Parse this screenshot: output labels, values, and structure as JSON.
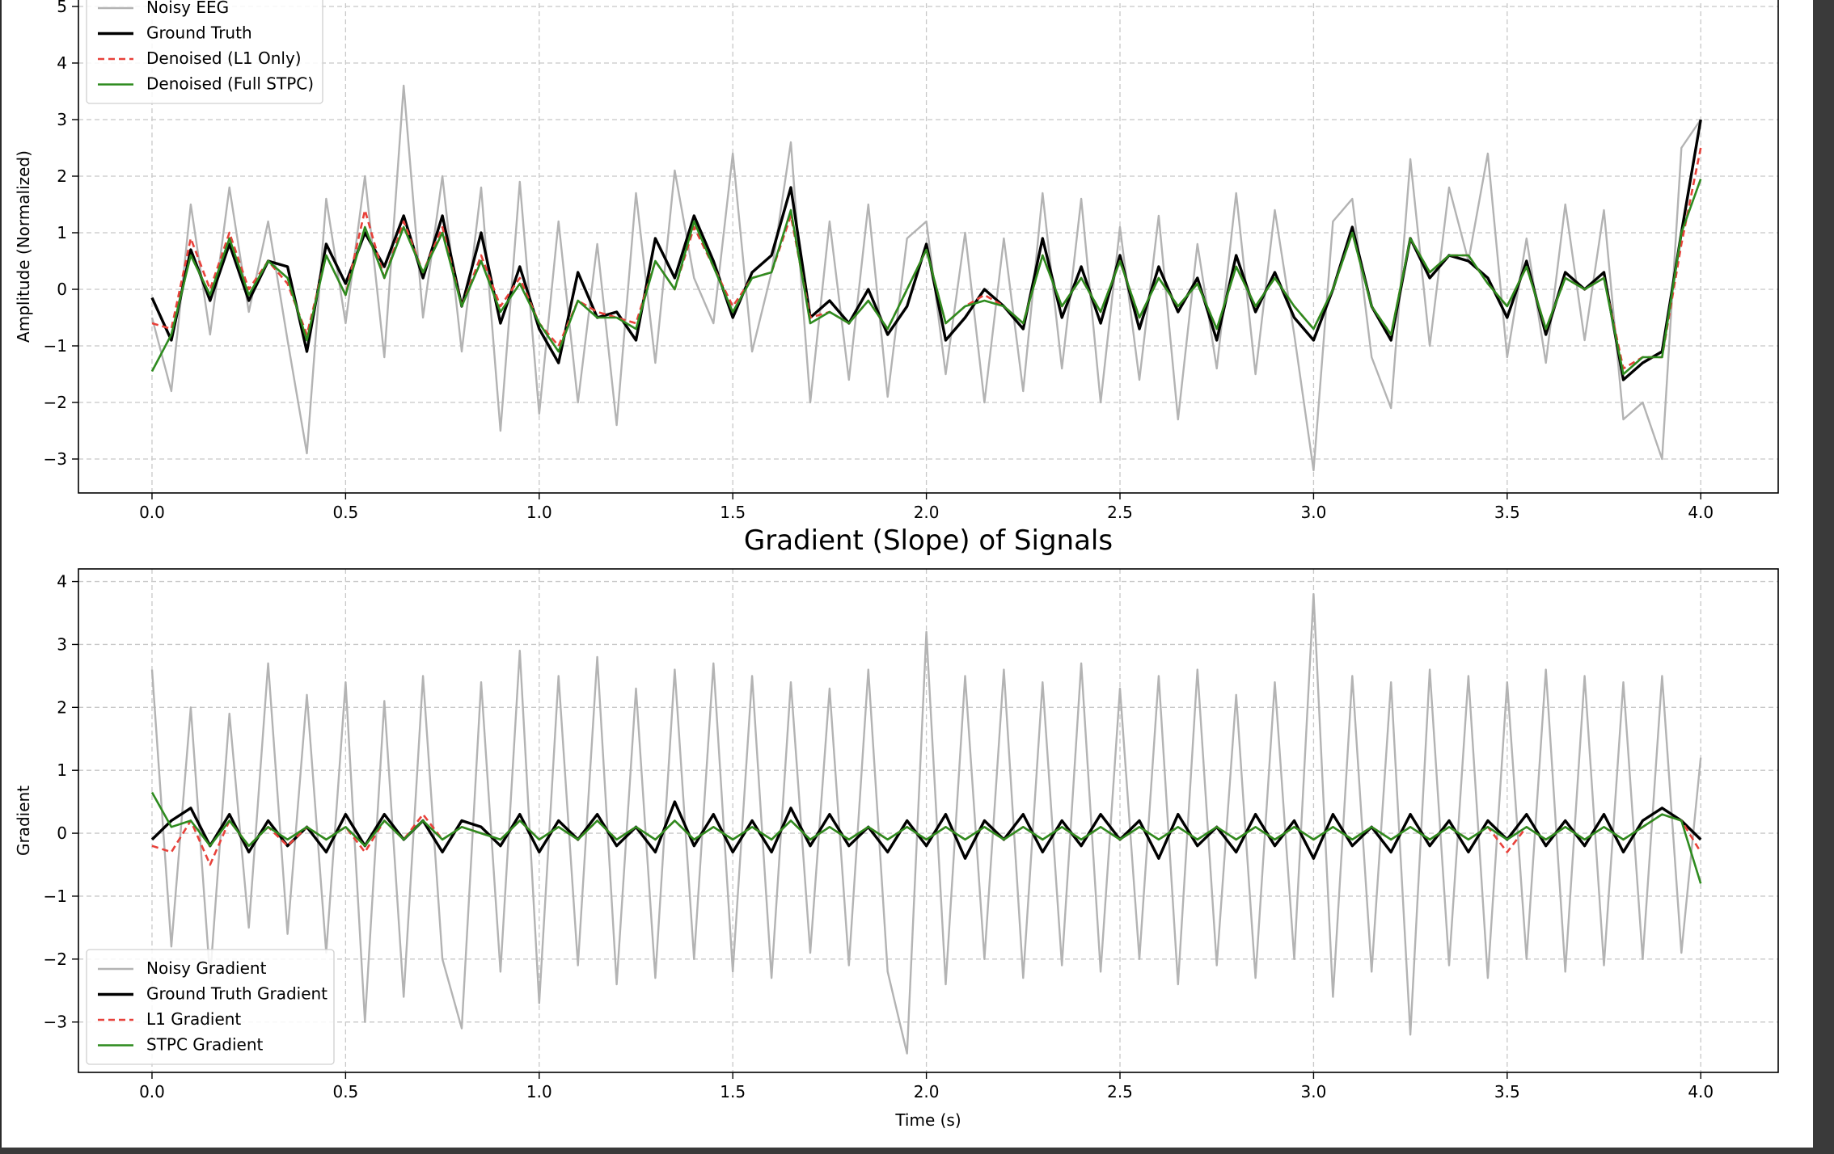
{
  "chart_data": [
    {
      "type": "line",
      "title": "",
      "xlabel": "",
      "ylabel": "Amplitude (Normalized)",
      "xlim": [
        -0.19,
        4.2
      ],
      "ylim": [
        -3.6,
        5.2
      ],
      "xticks": [
        0.0,
        0.5,
        1.0,
        1.5,
        2.0,
        2.5,
        3.0,
        3.5,
        4.0
      ],
      "xtick_labels": [
        "0.0",
        "0.5",
        "1.0",
        "1.5",
        "2.0",
        "2.5",
        "3.0",
        "3.5",
        "4.0"
      ],
      "yticks": [
        -3,
        -2,
        -1,
        0,
        1,
        2,
        3,
        4,
        5
      ],
      "ytick_labels": [
        "−3",
        "−2",
        "−1",
        "0",
        "1",
        "2",
        "3",
        "4",
        "5"
      ],
      "grid": true,
      "legend_position": "top-left",
      "x": [
        0.0,
        0.05,
        0.1,
        0.15,
        0.2,
        0.25,
        0.3,
        0.35,
        0.4,
        0.45,
        0.5,
        0.55,
        0.6,
        0.65,
        0.7,
        0.75,
        0.8,
        0.85,
        0.9,
        0.95,
        1.0,
        1.05,
        1.1,
        1.15,
        1.2,
        1.25,
        1.3,
        1.35,
        1.4,
        1.45,
        1.5,
        1.55,
        1.6,
        1.65,
        1.7,
        1.75,
        1.8,
        1.85,
        1.9,
        1.95,
        2.0,
        2.05,
        2.1,
        2.15,
        2.2,
        2.25,
        2.3,
        2.35,
        2.4,
        2.45,
        2.5,
        2.55,
        2.6,
        2.65,
        2.7,
        2.75,
        2.8,
        2.85,
        2.9,
        2.95,
        3.0,
        3.05,
        3.1,
        3.15,
        3.2,
        3.25,
        3.3,
        3.35,
        3.4,
        3.45,
        3.5,
        3.55,
        3.6,
        3.65,
        3.7,
        3.75,
        3.8,
        3.85,
        3.9,
        3.95,
        4.0
      ],
      "series": [
        {
          "name": "Noisy EEG",
          "color": "#b3b3b3",
          "dash": "",
          "values": [
            -0.5,
            -1.8,
            1.5,
            -0.8,
            1.8,
            -0.4,
            1.2,
            -0.9,
            -2.9,
            1.6,
            -0.6,
            2.0,
            -1.2,
            3.6,
            -0.5,
            2.0,
            -1.1,
            1.8,
            -2.5,
            1.9,
            -2.2,
            1.2,
            -2.0,
            0.8,
            -2.4,
            1.7,
            -1.3,
            2.1,
            0.2,
            -0.6,
            2.4,
            -1.1,
            0.3,
            2.6,
            -2.0,
            1.2,
            -1.6,
            1.5,
            -1.9,
            0.9,
            1.2,
            -1.5,
            1.0,
            -2.0,
            0.9,
            -1.8,
            1.7,
            -1.4,
            1.6,
            -2.0,
            1.1,
            -1.6,
            1.3,
            -2.3,
            0.8,
            -1.4,
            1.7,
            -1.5,
            1.4,
            -0.8,
            -3.2,
            1.2,
            1.6,
            -1.2,
            -2.1,
            2.3,
            -1.0,
            1.8,
            0.5,
            2.4,
            -1.2,
            0.9,
            -1.3,
            1.5,
            -0.9,
            1.4,
            -2.3,
            -2.0,
            -3.0,
            2.5,
            3.0
          ]
        },
        {
          "name": "Ground Truth",
          "color": "#000000",
          "dash": "",
          "values": [
            -0.15,
            -0.9,
            0.7,
            -0.2,
            0.8,
            -0.2,
            0.5,
            0.4,
            -1.1,
            0.8,
            0.1,
            1.0,
            0.4,
            1.3,
            0.2,
            1.3,
            -0.3,
            1.0,
            -0.6,
            0.4,
            -0.7,
            -1.3,
            0.3,
            -0.5,
            -0.4,
            -0.9,
            0.9,
            0.2,
            1.3,
            0.5,
            -0.5,
            0.3,
            0.6,
            1.8,
            -0.5,
            -0.2,
            -0.6,
            0.0,
            -0.8,
            -0.3,
            0.8,
            -0.9,
            -0.5,
            0.0,
            -0.3,
            -0.7,
            0.9,
            -0.5,
            0.4,
            -0.6,
            0.6,
            -0.7,
            0.4,
            -0.4,
            0.2,
            -0.9,
            0.6,
            -0.4,
            0.3,
            -0.5,
            -0.9,
            0.0,
            1.1,
            -0.3,
            -0.9,
            0.9,
            0.2,
            0.6,
            0.5,
            0.2,
            -0.5,
            0.5,
            -0.8,
            0.3,
            0.0,
            0.3,
            -1.6,
            -1.3,
            -1.1,
            1.0,
            3.0
          ]
        },
        {
          "name": "Denoised (L1 Only)",
          "color": "#e8413a",
          "dash": "8,5",
          "values": [
            -0.6,
            -0.7,
            0.9,
            0.0,
            1.0,
            0.0,
            0.5,
            0.1,
            -0.8,
            0.6,
            -0.1,
            1.4,
            0.2,
            1.2,
            0.3,
            1.1,
            -0.3,
            0.6,
            -0.3,
            0.2,
            -0.6,
            -1.0,
            -0.2,
            -0.4,
            -0.5,
            -0.6,
            0.5,
            0.0,
            1.1,
            0.4,
            -0.3,
            0.2,
            0.3,
            1.3,
            -0.5,
            -0.4,
            -0.6,
            -0.2,
            -0.7,
            0.0,
            0.7,
            -0.6,
            -0.3,
            -0.1,
            -0.3,
            -0.6,
            0.6,
            -0.3,
            0.2,
            -0.4,
            0.5,
            -0.5,
            0.2,
            -0.3,
            0.1,
            -0.7,
            0.4,
            -0.3,
            0.2,
            -0.3,
            -0.7,
            0.0,
            1.0,
            -0.3,
            -0.8,
            0.9,
            0.3,
            0.6,
            0.6,
            0.1,
            -0.3,
            0.4,
            -0.7,
            0.2,
            0.0,
            0.2,
            -1.4,
            -1.2,
            -1.2,
            0.8,
            2.5
          ]
        },
        {
          "name": "Denoised (Full STPC)",
          "color": "#2e8b1f",
          "dash": "",
          "values": [
            -1.45,
            -0.8,
            0.6,
            -0.1,
            0.9,
            -0.1,
            0.5,
            0.2,
            -0.9,
            0.6,
            -0.1,
            1.1,
            0.2,
            1.1,
            0.3,
            1.0,
            -0.3,
            0.5,
            -0.4,
            0.1,
            -0.6,
            -1.1,
            -0.2,
            -0.5,
            -0.5,
            -0.7,
            0.5,
            0.0,
            1.2,
            0.4,
            -0.4,
            0.2,
            0.3,
            1.4,
            -0.6,
            -0.4,
            -0.6,
            -0.2,
            -0.7,
            0.0,
            0.7,
            -0.6,
            -0.3,
            -0.2,
            -0.3,
            -0.6,
            0.6,
            -0.3,
            0.2,
            -0.4,
            0.5,
            -0.5,
            0.2,
            -0.3,
            0.1,
            -0.7,
            0.4,
            -0.3,
            0.2,
            -0.3,
            -0.7,
            0.0,
            1.0,
            -0.3,
            -0.8,
            0.9,
            0.3,
            0.6,
            0.6,
            0.1,
            -0.3,
            0.4,
            -0.7,
            0.2,
            0.0,
            0.2,
            -1.5,
            -1.2,
            -1.2,
            1.0,
            1.95
          ]
        }
      ]
    },
    {
      "type": "line",
      "title": "Gradient (Slope) of Signals",
      "xlabel": "Time (s)",
      "ylabel": "Gradient",
      "xlim": [
        -0.19,
        4.2
      ],
      "ylim": [
        -3.8,
        4.2
      ],
      "xticks": [
        0.0,
        0.5,
        1.0,
        1.5,
        2.0,
        2.5,
        3.0,
        3.5,
        4.0
      ],
      "xtick_labels": [
        "0.0",
        "0.5",
        "1.0",
        "1.5",
        "2.0",
        "2.5",
        "3.0",
        "3.5",
        "4.0"
      ],
      "yticks": [
        -3,
        -2,
        -1,
        0,
        1,
        2,
        3,
        4
      ],
      "ytick_labels": [
        "−3",
        "−2",
        "−1",
        "0",
        "1",
        "2",
        "3",
        "4"
      ],
      "grid": true,
      "legend_position": "bottom-left",
      "x": [
        0.0,
        0.05,
        0.1,
        0.15,
        0.2,
        0.25,
        0.3,
        0.35,
        0.4,
        0.45,
        0.5,
        0.55,
        0.6,
        0.65,
        0.7,
        0.75,
        0.8,
        0.85,
        0.9,
        0.95,
        1.0,
        1.05,
        1.1,
        1.15,
        1.2,
        1.25,
        1.3,
        1.35,
        1.4,
        1.45,
        1.5,
        1.55,
        1.6,
        1.65,
        1.7,
        1.75,
        1.8,
        1.85,
        1.9,
        1.95,
        2.0,
        2.05,
        2.1,
        2.15,
        2.2,
        2.25,
        2.3,
        2.35,
        2.4,
        2.45,
        2.5,
        2.55,
        2.6,
        2.65,
        2.7,
        2.75,
        2.8,
        2.85,
        2.9,
        2.95,
        3.0,
        3.05,
        3.1,
        3.15,
        3.2,
        3.25,
        3.3,
        3.35,
        3.4,
        3.45,
        3.5,
        3.55,
        3.6,
        3.65,
        3.7,
        3.75,
        3.8,
        3.85,
        3.9,
        3.95,
        4.0
      ],
      "series": [
        {
          "name": "Noisy Gradient",
          "color": "#b3b3b3",
          "dash": "",
          "values": [
            2.6,
            -1.8,
            2.0,
            -2.3,
            1.9,
            -1.5,
            2.7,
            -1.6,
            2.2,
            -1.9,
            2.4,
            -3.0,
            2.1,
            -2.6,
            2.5,
            -2.0,
            -3.1,
            2.4,
            -2.2,
            2.9,
            -2.7,
            2.5,
            -2.1,
            2.8,
            -2.4,
            2.3,
            -2.3,
            2.6,
            -2.0,
            2.7,
            -2.2,
            2.5,
            -2.3,
            2.4,
            -1.9,
            2.3,
            -2.1,
            2.6,
            -2.2,
            -3.5,
            3.2,
            -2.4,
            2.5,
            -2.0,
            2.6,
            -2.3,
            2.4,
            -2.1,
            2.7,
            -2.2,
            2.3,
            -2.0,
            2.5,
            -2.4,
            2.6,
            -2.1,
            2.2,
            -2.3,
            2.4,
            -2.0,
            3.8,
            -2.6,
            2.5,
            -2.2,
            2.4,
            -3.2,
            2.6,
            -2.1,
            2.5,
            -2.3,
            2.4,
            -2.0,
            2.6,
            -2.2,
            2.5,
            -2.1,
            2.4,
            -2.0,
            2.5,
            -1.9,
            1.2
          ]
        },
        {
          "name": "Ground Truth Gradient",
          "color": "#000000",
          "dash": "",
          "values": [
            -0.1,
            0.2,
            0.4,
            -0.2,
            0.3,
            -0.3,
            0.2,
            -0.2,
            0.1,
            -0.3,
            0.3,
            -0.2,
            0.3,
            -0.1,
            0.2,
            -0.3,
            0.2,
            0.1,
            -0.2,
            0.3,
            -0.3,
            0.2,
            -0.1,
            0.3,
            -0.2,
            0.1,
            -0.3,
            0.5,
            -0.2,
            0.3,
            -0.3,
            0.2,
            -0.3,
            0.4,
            -0.2,
            0.3,
            -0.2,
            0.1,
            -0.3,
            0.2,
            -0.2,
            0.3,
            -0.4,
            0.2,
            -0.1,
            0.3,
            -0.3,
            0.2,
            -0.2,
            0.3,
            -0.1,
            0.2,
            -0.4,
            0.3,
            -0.2,
            0.1,
            -0.3,
            0.3,
            -0.2,
            0.2,
            -0.4,
            0.3,
            -0.2,
            0.1,
            -0.3,
            0.3,
            -0.2,
            0.2,
            -0.3,
            0.2,
            -0.1,
            0.3,
            -0.2,
            0.2,
            -0.2,
            0.3,
            -0.3,
            0.2,
            0.4,
            0.2,
            -0.1
          ]
        },
        {
          "name": "L1 Gradient",
          "color": "#e8413a",
          "dash": "8,5",
          "values": [
            -0.2,
            -0.3,
            0.2,
            -0.5,
            0.2,
            -0.2,
            0.1,
            -0.2,
            0.1,
            -0.1,
            0.1,
            -0.3,
            0.2,
            -0.1,
            0.3,
            -0.1,
            0.1,
            0.0,
            -0.1,
            0.2,
            -0.1,
            0.1,
            -0.1,
            0.2,
            -0.1,
            0.1,
            -0.1,
            0.2,
            -0.1,
            0.1,
            -0.1,
            0.1,
            -0.1,
            0.2,
            -0.1,
            0.1,
            -0.1,
            0.1,
            -0.1,
            0.1,
            -0.1,
            0.1,
            -0.1,
            0.1,
            -0.1,
            0.1,
            -0.1,
            0.1,
            -0.1,
            0.1,
            -0.1,
            0.1,
            -0.1,
            0.1,
            -0.1,
            0.1,
            -0.1,
            0.1,
            -0.1,
            0.1,
            -0.1,
            0.1,
            -0.1,
            0.1,
            -0.1,
            0.1,
            -0.1,
            0.1,
            -0.1,
            0.1,
            -0.3,
            0.1,
            -0.1,
            0.1,
            -0.1,
            0.1,
            -0.1,
            0.1,
            0.3,
            0.2,
            -0.3
          ]
        },
        {
          "name": "STPC Gradient",
          "color": "#2e8b1f",
          "dash": "",
          "values": [
            0.65,
            0.1,
            0.2,
            -0.2,
            0.2,
            -0.2,
            0.1,
            -0.1,
            0.1,
            -0.1,
            0.1,
            -0.2,
            0.2,
            -0.1,
            0.2,
            -0.1,
            0.1,
            0.0,
            -0.1,
            0.2,
            -0.1,
            0.1,
            -0.1,
            0.2,
            -0.1,
            0.1,
            -0.1,
            0.2,
            -0.1,
            0.1,
            -0.1,
            0.1,
            -0.1,
            0.2,
            -0.1,
            0.1,
            -0.1,
            0.1,
            -0.1,
            0.1,
            -0.1,
            0.1,
            -0.1,
            0.1,
            -0.1,
            0.1,
            -0.1,
            0.1,
            -0.1,
            0.1,
            -0.1,
            0.1,
            -0.1,
            0.1,
            -0.1,
            0.1,
            -0.1,
            0.1,
            -0.1,
            0.1,
            -0.1,
            0.1,
            -0.1,
            0.1,
            -0.1,
            0.1,
            -0.1,
            0.1,
            -0.1,
            0.1,
            -0.1,
            0.1,
            -0.1,
            0.1,
            -0.1,
            0.1,
            -0.1,
            0.1,
            0.3,
            0.2,
            -0.8
          ]
        }
      ]
    }
  ]
}
